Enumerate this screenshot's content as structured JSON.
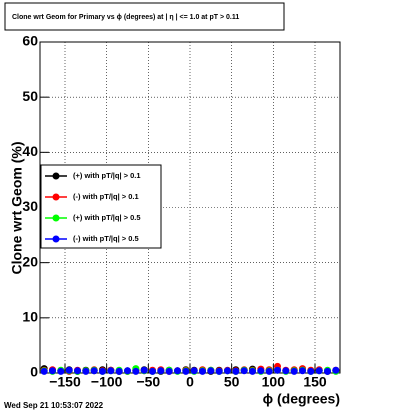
{
  "chart_data": {
    "type": "scatter",
    "title": "Clone wrt Geom for Primary vs ϕ (degrees) at |  η | <= 1.0 at pT > 0.11",
    "x_label": "ϕ (degrees)",
    "y_label": "Clone wrt Geom (%)",
    "timestamp": "Wed Sep 21 10:53:07 2022",
    "x": [
      -175,
      -165,
      -155,
      -145,
      -135,
      -125,
      -115,
      -105,
      -95,
      -85,
      -75,
      -65,
      -55,
      -45,
      -35,
      -25,
      -15,
      -5,
      5,
      15,
      25,
      35,
      45,
      55,
      65,
      75,
      85,
      95,
      105,
      115,
      125,
      135,
      145,
      155,
      165,
      175
    ],
    "series": [
      {
        "name": "(+) with pT/|q| > 0.1",
        "color": "#000000",
        "values": [
          0.8,
          0.5,
          0.4,
          0.6,
          0.3,
          0.5,
          0.4,
          0.6,
          0.5,
          0.3,
          0.4,
          0.5,
          0.6,
          0.4,
          0.3,
          0.5,
          0.4,
          0.6,
          0.5,
          0.4,
          0.3,
          0.5,
          0.4,
          0.6,
          0.5,
          0.7,
          0.4,
          0.5,
          0.6,
          0.4,
          0.5,
          0.6,
          0.4,
          0.5,
          0.3,
          0.4
        ]
      },
      {
        "name": "(-) with pT/|q| > 0.1",
        "color": "#ff0000",
        "values": [
          0.5,
          0.6,
          0.4,
          0.3,
          0.5,
          0.4,
          0.6,
          0.4,
          0.5,
          0.4,
          0.3,
          0.5,
          0.4,
          0.5,
          0.6,
          0.3,
          0.4,
          0.5,
          0.4,
          0.6,
          0.5,
          0.4,
          0.5,
          0.4,
          0.6,
          0.5,
          0.7,
          0.6,
          1.2,
          0.5,
          0.6,
          0.8,
          0.5,
          0.6,
          0.4,
          0.5
        ]
      },
      {
        "name": "(+) with pT/|q| > 0.5",
        "color": "#00ff00",
        "values": [
          0.4,
          0.3,
          0.5,
          0.4,
          0.3,
          0.4,
          0.5,
          0.3,
          0.4,
          0.5,
          0.3,
          0.8,
          0.4,
          0.3,
          0.4,
          0.5,
          0.3,
          0.4,
          0.3,
          0.4,
          0.5,
          0.3,
          0.4,
          0.3,
          0.5,
          0.4,
          0.3,
          0.4,
          0.5,
          0.3,
          0.4,
          0.5,
          0.3,
          0.4,
          0.5,
          0.3
        ]
      },
      {
        "name": "(-) with pT/|q| > 0.5",
        "color": "#0000ff",
        "values": [
          0.3,
          0.4,
          0.3,
          0.5,
          0.4,
          0.3,
          0.4,
          0.3,
          0.4,
          0.3,
          0.4,
          0.3,
          0.5,
          0.3,
          0.4,
          0.3,
          0.4,
          0.3,
          0.4,
          0.3,
          0.4,
          0.3,
          0.4,
          0.3,
          0.4,
          0.3,
          0.4,
          0.3,
          0.5,
          0.4,
          0.3,
          0.4,
          0.3,
          0.4,
          0.3,
          0.5
        ]
      }
    ],
    "xlim": [
      -180,
      180
    ],
    "xticks": [
      {
        "value": -150,
        "label": "−150"
      },
      {
        "value": -100,
        "label": "−100"
      },
      {
        "value": -50,
        "label": "−50"
      },
      0,
      50,
      100,
      150
    ],
    "ylim": [
      0,
      60
    ],
    "yticks": [
      0,
      10,
      20,
      30,
      40,
      50,
      60
    ],
    "grid": true,
    "legend": "left"
  }
}
